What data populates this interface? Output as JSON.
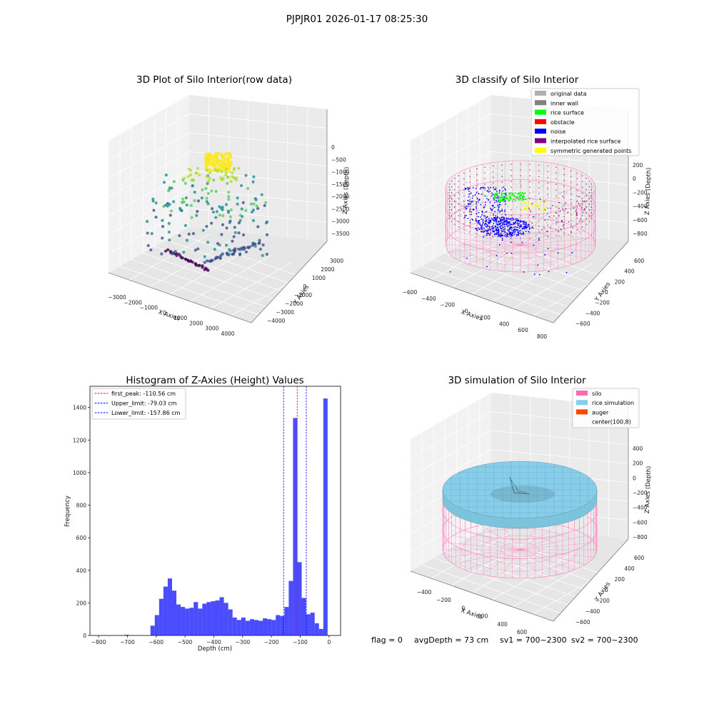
{
  "figure": {
    "suptitle": "PJPJR01 2026-01-17 08:25:30",
    "footer": {
      "flag": "flag = 0",
      "avg_depth": "avgDepth = 73 cm",
      "sv1": "sv1 = 700~2300",
      "sv2": "sv2 = 700~2300"
    }
  },
  "chart_data": [
    {
      "type": "scatter3d",
      "title": "3D Plot of Silo Interior(row data)",
      "xlabel": "X Axies",
      "ylabel": "Y Axies",
      "zlabel": "Z Axies (Depth)",
      "x_ticks": [
        "−3000",
        "−2000",
        "−1000",
        "0",
        "1000",
        "2000",
        "3000",
        "4000"
      ],
      "y_ticks": [
        "−4000",
        "−3000",
        "−2000",
        "−1000",
        "0",
        "1000",
        "2000",
        "3000"
      ],
      "z_ticks": [
        "0",
        "−500",
        "−1000",
        "−1500",
        "−2000",
        "−2500",
        "−3000",
        "−3500"
      ],
      "colormap": "viridis"
    },
    {
      "type": "scatter3d",
      "title": "3D classify of Silo Interior",
      "xlabel": "X Axies",
      "ylabel": "Y Axies",
      "zlabel": "Z Axies (Depth)",
      "x_ticks": [
        "−600",
        "−400",
        "−200",
        "0",
        "200",
        "400",
        "600",
        "800"
      ],
      "y_ticks": [
        "−600",
        "−400",
        "−200",
        "0",
        "200",
        "400",
        "600"
      ],
      "z_ticks": [
        "200",
        "0",
        "−200",
        "−400",
        "−600",
        "−800"
      ],
      "legend_position": "top-right",
      "legend": [
        {
          "label": "original data",
          "color": "#b0b0b0"
        },
        {
          "label": "inner wall",
          "color": "#808080"
        },
        {
          "label": "rice surface",
          "color": "#00ff00"
        },
        {
          "label": "obstacle",
          "color": "#ff0000"
        },
        {
          "label": "noise",
          "color": "#0000ff"
        },
        {
          "label": "interpolated rice surface",
          "color": "#800080"
        },
        {
          "label": "symmetric generated points",
          "color": "#ffff00"
        }
      ]
    },
    {
      "type": "bar",
      "title": "Histogram of Z-Axies (Height) Values",
      "xlabel": "Depth (cm)",
      "ylabel": "Frequency",
      "xlim": [
        -830,
        40
      ],
      "ylim": [
        0,
        1530
      ],
      "x_ticks": [
        -800,
        -700,
        -600,
        -500,
        -400,
        -300,
        -200,
        -100,
        0
      ],
      "x_tick_labels": [
        "−800",
        "−700",
        "−600",
        "−500",
        "−400",
        "−300",
        "−200",
        "−100",
        "0"
      ],
      "y_ticks": [
        0,
        200,
        400,
        600,
        800,
        1000,
        1200,
        1400
      ],
      "bar_color": "#0000ff",
      "bin_width": 15,
      "bins": [
        [
          -710,
          4
        ],
        [
          -620,
          60
        ],
        [
          -605,
          125
        ],
        [
          -590,
          225
        ],
        [
          -575,
          300
        ],
        [
          -560,
          350
        ],
        [
          -545,
          275
        ],
        [
          -530,
          190
        ],
        [
          -515,
          175
        ],
        [
          -500,
          165
        ],
        [
          -485,
          170
        ],
        [
          -470,
          205
        ],
        [
          -455,
          165
        ],
        [
          -440,
          195
        ],
        [
          -425,
          205
        ],
        [
          -410,
          210
        ],
        [
          -395,
          215
        ],
        [
          -380,
          235
        ],
        [
          -365,
          200
        ],
        [
          -350,
          160
        ],
        [
          -335,
          110
        ],
        [
          -320,
          95
        ],
        [
          -305,
          110
        ],
        [
          -290,
          90
        ],
        [
          -275,
          100
        ],
        [
          -260,
          95
        ],
        [
          -245,
          90
        ],
        [
          -230,
          105
        ],
        [
          -215,
          100
        ],
        [
          -200,
          95
        ],
        [
          -185,
          125
        ],
        [
          -170,
          120
        ],
        [
          -155,
          175
        ],
        [
          -140,
          335
        ],
        [
          -125,
          1335
        ],
        [
          -110,
          450
        ],
        [
          -95,
          230
        ],
        [
          -80,
          130
        ],
        [
          -65,
          140
        ],
        [
          -50,
          75
        ],
        [
          -35,
          40
        ],
        [
          -20,
          1455
        ]
      ],
      "vlines": [
        {
          "name": "first_peak",
          "label": "first_peak: -110.56 cm",
          "x": -110.56,
          "color": "#ff0000"
        },
        {
          "name": "upper-limit",
          "label": "Upper_limit: -79.03 cm",
          "x": -79.03,
          "color": "#0000ff"
        },
        {
          "name": "lower-limit",
          "label": "Lower_limit: -157.86 cm",
          "x": -157.86,
          "color": "#0000ff"
        }
      ],
      "legend_position": "top-left"
    },
    {
      "type": "surface3d",
      "title": "3D simulation of Silo Interior",
      "xlabel": "X Axies",
      "ylabel": "Y Axies",
      "zlabel": "Z Axies (Depth)",
      "x_ticks": [
        "−400",
        "−200",
        "0",
        "200",
        "400",
        "600"
      ],
      "y_ticks": [
        "−600",
        "−400",
        "−200",
        "0",
        "200",
        "400",
        "600"
      ],
      "z_ticks": [
        "400",
        "200",
        "0",
        "−200",
        "−400",
        "−600",
        "−800"
      ],
      "legend_position": "top-right",
      "legend": [
        {
          "label": "silo",
          "color": "#ff69b4"
        },
        {
          "label": "rice simulation",
          "color": "#87ceeb"
        },
        {
          "label": "auger",
          "color": "#ff4500"
        },
        {
          "label": "center(100,8)",
          "color": ""
        }
      ]
    }
  ]
}
